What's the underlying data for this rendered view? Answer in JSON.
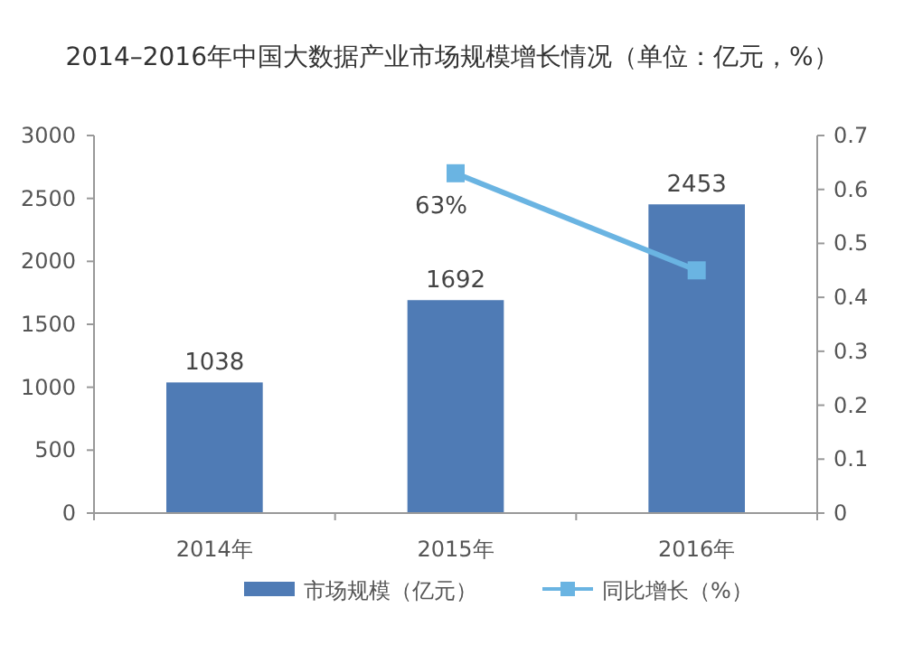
{
  "chart_data": {
    "type": "bar",
    "title": "2014–2016年中国大数据产业市场规模增长情况（单位：亿元，%）",
    "categories": [
      "2014年",
      "2015年",
      "2016年"
    ],
    "series": [
      {
        "name": "市场规模（亿元）",
        "color": "#4f7bb5",
        "values": [
          1038,
          1692,
          2453
        ],
        "data_labels": true
      },
      {
        "name": "同比增长（%）",
        "type": "line",
        "axis": "y2",
        "color": "#6ab4e2",
        "values": [
          null,
          0.63,
          0.45
        ],
        "value_labels": [
          null,
          "63%",
          null
        ],
        "marker": "square"
      }
    ],
    "ylim": [
      0,
      3000
    ],
    "yticks": [
      0,
      500,
      1000,
      1500,
      2000,
      2500,
      3000
    ],
    "y2lim": [
      0,
      0.7
    ],
    "y2ticks": [
      0,
      0.1,
      0.2,
      0.3,
      0.4,
      0.5,
      0.6,
      0.7
    ],
    "grid": false,
    "legend": "bottom"
  }
}
